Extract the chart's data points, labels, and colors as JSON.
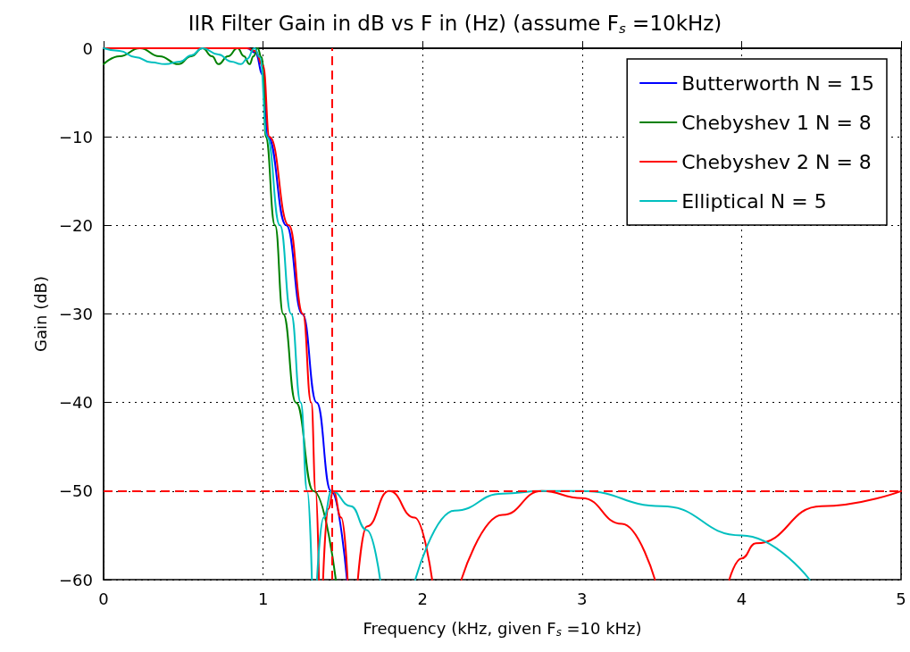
{
  "chart_data": {
    "type": "line",
    "title": "IIR Filter Gain in dB vs F in (Hz) (assume F$_{s}$ =10kHz)",
    "xlabel": "Frequency (kHz, given F$_{s}$ =10 kHz)",
    "ylabel": "Gain (dB)",
    "xlim": [
      0,
      5
    ],
    "xticks": [
      0,
      1,
      2,
      3,
      4,
      5
    ],
    "ylim": [
      -60,
      0
    ],
    "yticks": [
      -60,
      -50,
      -40,
      -30,
      -20,
      -10,
      0
    ],
    "grid": true,
    "legend": "top right",
    "marker": "none",
    "line_style": "solid",
    "series": [
      {
        "name": "Butterworth N = 15",
        "color": "#0000ff",
        "x": [
          0,
          0.9,
          0.95,
          1.0,
          1.03,
          1.146,
          1.246,
          1.336,
          1.426,
          1.526
        ],
        "values": [
          0,
          0,
          -0.5,
          -3,
          -10,
          -20,
          -30,
          -40,
          -50,
          -60
        ]
      },
      {
        "name": "Chebyshev 1 N = 8",
        "color": "#008000",
        "x": [
          0,
          0.1,
          0.228,
          0.35,
          0.47,
          0.55,
          0.62,
          0.68,
          0.72,
          0.78,
          0.84,
          0.88,
          0.915,
          0.94,
          0.965,
          0.99,
          1.0,
          1.016,
          1.075,
          1.126,
          1.206,
          1.316,
          1.456
        ],
        "values": [
          -1.8,
          -0.9,
          0,
          -0.9,
          -1.8,
          -0.9,
          0,
          -0.9,
          -1.8,
          -0.9,
          0,
          -0.9,
          -1.8,
          -0.9,
          0,
          -1,
          -1.8,
          -10,
          -20,
          -30,
          -40,
          -50,
          -60
        ]
      },
      {
        "name": "Chebyshev 2 N = 8",
        "color": "#ff0000",
        "x": [
          0,
          0.9,
          0.95,
          1.0,
          1.04,
          1.162,
          1.25,
          1.302,
          1.33,
          1.35,
          1.36,
          1.376,
          1.41,
          1.44,
          1.49,
          1.53,
          1.56,
          1.594,
          1.65,
          1.79,
          1.95,
          2.06,
          2.15,
          2.243,
          2.5,
          2.747,
          3.0,
          3.25,
          3.457,
          3.7,
          3.923,
          4.0,
          4.09,
          4.5,
          5.0
        ],
        "values": [
          0,
          0,
          -0.3,
          -2,
          -10,
          -20,
          -30,
          -40,
          -50,
          -60,
          null,
          -60,
          -52,
          -50,
          -53,
          -60,
          null,
          -60,
          -54,
          -50,
          -53,
          -60,
          null,
          -60,
          -52.7,
          -50,
          -50.8,
          -53.7,
          -60,
          null,
          -60,
          -57.6,
          -55.9,
          -51.7,
          -50
        ]
      },
      {
        "name": "Elliptical N = 5",
        "color": "#00bfbf",
        "x": [
          0,
          0.1,
          0.2,
          0.3,
          0.386,
          0.48,
          0.55,
          0.62,
          0.72,
          0.8,
          0.862,
          0.9,
          0.946,
          0.98,
          1.025,
          1.106,
          1.176,
          1.236,
          1.277,
          1.306,
          1.32,
          1.338,
          1.38,
          1.43,
          1.55,
          1.65,
          1.734,
          1.85,
          1.954,
          2.2,
          2.5,
          2.75,
          3.0,
          3.5,
          4.0,
          4.427
        ],
        "values": [
          0,
          -0.3,
          -1.0,
          -1.6,
          -1.8,
          -1.5,
          -0.8,
          0,
          -0.7,
          -1.5,
          -1.8,
          -1.2,
          0,
          -1,
          -10,
          -20,
          -30,
          -40,
          -50,
          -60,
          null,
          -60,
          -53,
          -50,
          -51.7,
          -54.4,
          -60,
          null,
          -60,
          -52.2,
          -50.3,
          -50,
          -50,
          -51.7,
          -55,
          -60
        ]
      }
    ],
    "ref_lines": [
      {
        "axis": "x",
        "value": 1.43,
        "color": "#ff0000",
        "line_style": "dashed"
      },
      {
        "axis": "y",
        "value": -50,
        "color": "#ff0000",
        "line_style": "dashed"
      }
    ]
  }
}
